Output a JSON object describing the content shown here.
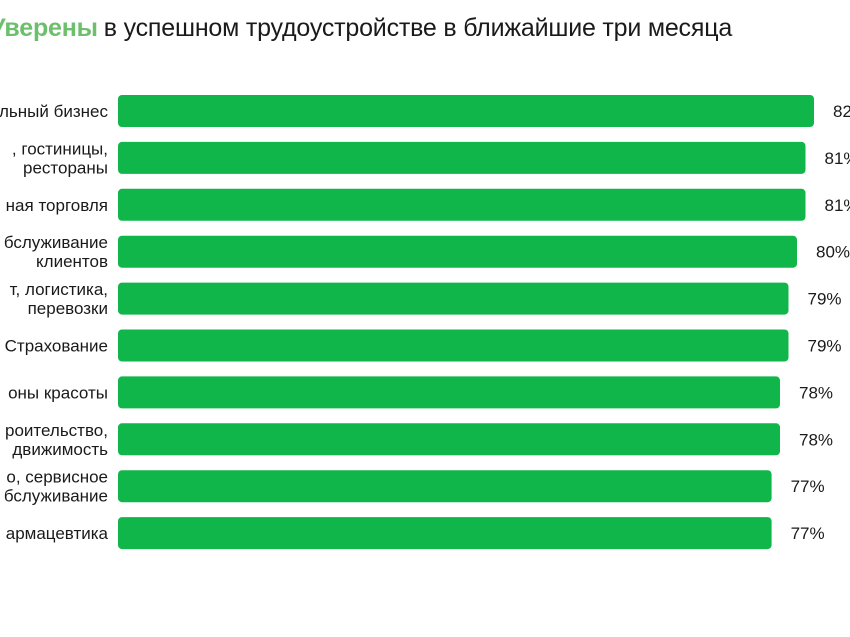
{
  "title": {
    "accent": "Уверены",
    "rest": "в успешном трудоустройстве в ближайшие три месяца"
  },
  "colors": {
    "bar": "#10b64a",
    "accent": "#6cc06b",
    "text": "#1a1a1a"
  },
  "chart_data": {
    "type": "bar",
    "orientation": "horizontal",
    "categories": [
      [
        "льный бизнес"
      ],
      [
        ", гостиницы,",
        "рестораны"
      ],
      [
        "ная торговля"
      ],
      [
        "бслуживание",
        "клиентов"
      ],
      [
        "т, логистика,",
        "перевозки"
      ],
      [
        "Страхование"
      ],
      [
        "оны красоты"
      ],
      [
        "роительство,",
        "движимость"
      ],
      [
        "о, сервисное",
        "бслуживание"
      ],
      [
        "армацевтика"
      ]
    ],
    "values": [
      82,
      81,
      81,
      80,
      79,
      79,
      78,
      78,
      77,
      77
    ],
    "value_labels": [
      "82",
      "81%",
      "81%",
      "80%",
      "79%",
      "79%",
      "78%",
      "78%",
      "77%",
      "77%"
    ],
    "xlim": [
      0,
      82
    ],
    "grid": false
  }
}
